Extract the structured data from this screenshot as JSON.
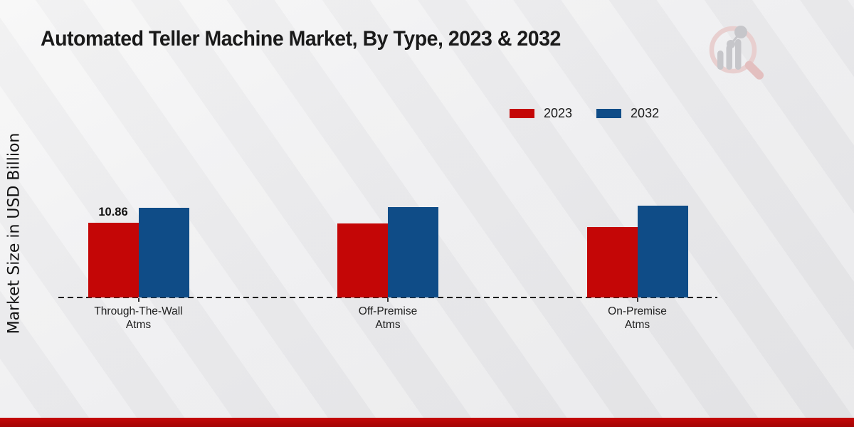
{
  "title": "Automated Teller Machine Market, By Type, 2023 & 2032",
  "chart_data": {
    "type": "bar",
    "categories": [
      [
        "Through-The-Wall",
        "Atms"
      ],
      [
        "Off-Premise",
        "Atms"
      ],
      [
        "On-Premise",
        "Atms"
      ]
    ],
    "series": [
      {
        "name": "2023",
        "color": "#c40606",
        "values": [
          10.86,
          10.8,
          10.2
        ]
      },
      {
        "name": "2032",
        "color": "#0f4c87",
        "values": [
          13.0,
          13.1,
          13.3
        ]
      }
    ],
    "value_labels": [
      {
        "series": "2023",
        "category_index": 0,
        "text": "10.86"
      }
    ],
    "ylabel": "Market Size in USD Billion",
    "xlabel": "",
    "ylim": [
      0,
      15
    ],
    "grid": false,
    "baseline_style": "dashed",
    "legend_position": "top-right"
  },
  "colors": {
    "accent_red": "#c40606",
    "accent_blue": "#0f4c87",
    "footer_strip": "#b40505",
    "background": "#e9e9ea"
  },
  "watermark": {
    "name": "market-research-logo"
  }
}
